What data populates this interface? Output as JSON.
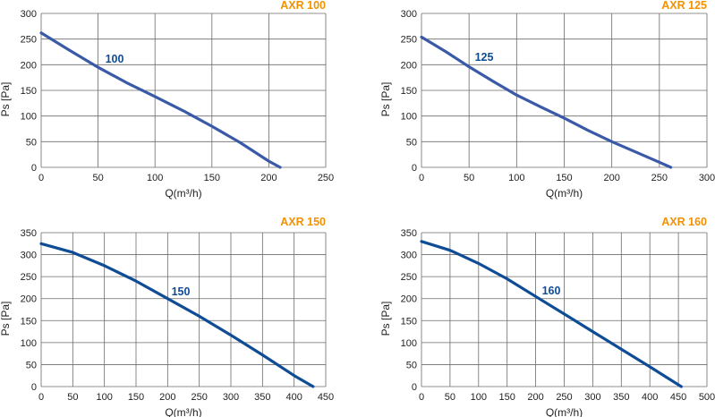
{
  "colors": {
    "title": "#f39200",
    "curve": "#3a5aa8",
    "curve_dark": "#0f4c96",
    "label": "#0f4c96",
    "grid": "#6b6b6b",
    "text": "#222222"
  },
  "chart_data": [
    {
      "type": "line",
      "title": "AXR 100",
      "xlabel": "Q(m³/h)",
      "ylabel": "Ps [Pa]",
      "xlim": [
        0,
        250
      ],
      "ylim": [
        0,
        300
      ],
      "xticks": [
        0,
        50,
        100,
        150,
        200,
        250
      ],
      "yticks": [
        0,
        50,
        100,
        150,
        200,
        250,
        300
      ],
      "grid": true,
      "series": [
        {
          "name": "100",
          "x": [
            0,
            25,
            50,
            75,
            100,
            125,
            150,
            175,
            200,
            210
          ],
          "y": [
            262,
            228,
            195,
            165,
            138,
            110,
            80,
            48,
            12,
            0
          ]
        }
      ]
    },
    {
      "type": "line",
      "title": "AXR 125",
      "xlabel": "Q(m³/h)",
      "ylabel": "Ps [Pa]",
      "xlim": [
        0,
        300
      ],
      "ylim": [
        0,
        300
      ],
      "xticks": [
        0,
        50,
        100,
        150,
        200,
        250,
        300
      ],
      "yticks": [
        0,
        50,
        100,
        150,
        200,
        250,
        300
      ],
      "grid": true,
      "series": [
        {
          "name": "125",
          "x": [
            0,
            25,
            50,
            75,
            100,
            125,
            150,
            175,
            200,
            225,
            250,
            262
          ],
          "y": [
            254,
            226,
            196,
            168,
            141,
            118,
            96,
            72,
            50,
            30,
            10,
            0
          ]
        }
      ]
    },
    {
      "type": "line",
      "title": "AXR 150",
      "xlabel": "Q(m³/h)",
      "ylabel": "Ps [Pa]",
      "xlim": [
        0,
        450
      ],
      "ylim": [
        0,
        350
      ],
      "xticks": [
        0,
        50,
        100,
        150,
        200,
        250,
        300,
        350,
        400,
        450
      ],
      "yticks": [
        0,
        50,
        100,
        150,
        200,
        250,
        300,
        350
      ],
      "grid": true,
      "series": [
        {
          "name": "150",
          "x": [
            0,
            50,
            100,
            150,
            200,
            250,
            300,
            350,
            400,
            430
          ],
          "y": [
            325,
            305,
            275,
            240,
            200,
            160,
            117,
            72,
            25,
            0
          ]
        }
      ]
    },
    {
      "type": "line",
      "title": "AXR 160",
      "xlabel": "Q(m³/h)",
      "ylabel": "Ps [Pa]",
      "xlim": [
        0,
        500
      ],
      "ylim": [
        0,
        350
      ],
      "xticks": [
        0,
        50,
        100,
        150,
        200,
        250,
        300,
        350,
        400,
        450,
        500
      ],
      "yticks": [
        0,
        50,
        100,
        150,
        200,
        250,
        300,
        350
      ],
      "grid": true,
      "series": [
        {
          "name": "160",
          "x": [
            0,
            50,
            100,
            150,
            200,
            250,
            300,
            350,
            400,
            455
          ],
          "y": [
            330,
            310,
            280,
            245,
            205,
            165,
            125,
            85,
            45,
            0
          ]
        }
      ]
    }
  ]
}
